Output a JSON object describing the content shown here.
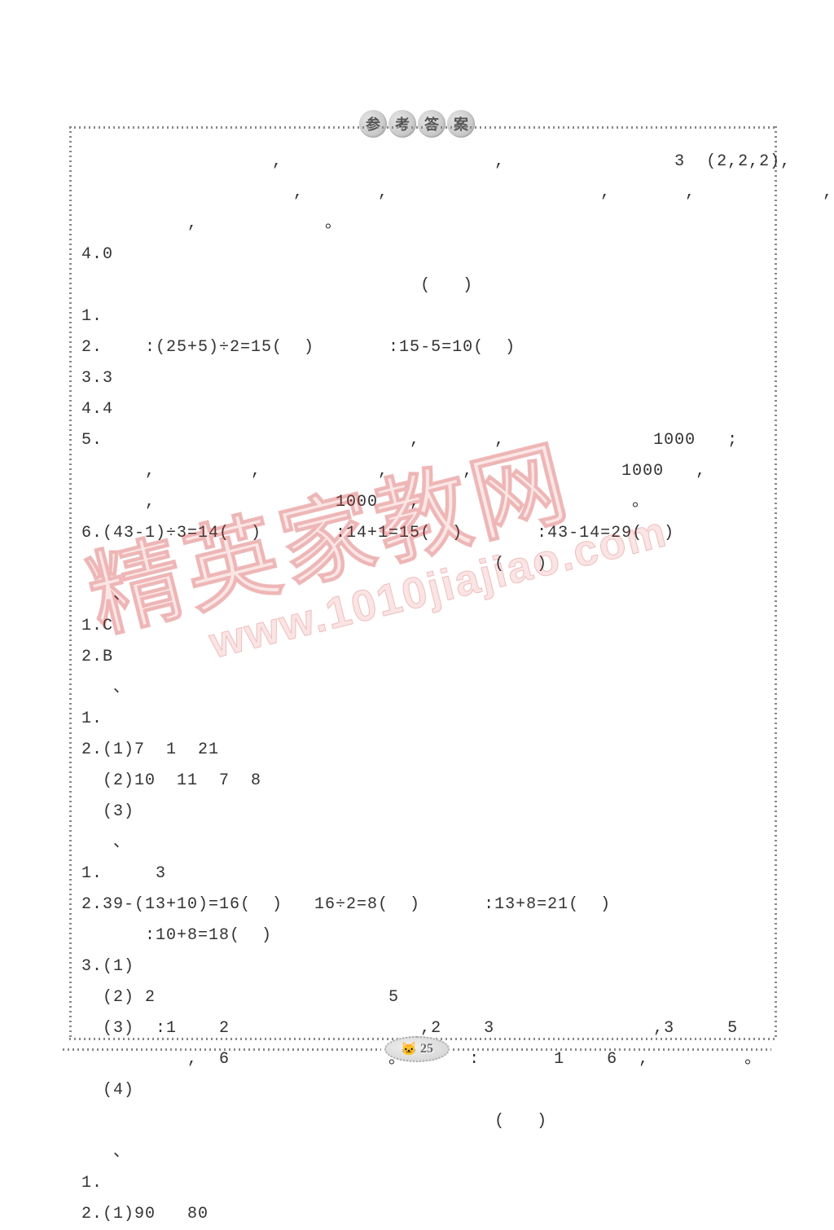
{
  "header": {
    "badge_chars": [
      "参",
      "考",
      "答",
      "案"
    ]
  },
  "lines": [
    "                  ,                    ,                3  (2,2,2),",
    "                    ,       ,                    ,       ,            ,",
    "          ,            。",
    "4.0",
    "                                (   )",
    "1.",
    "2.    :(25+5)÷2=15(  )       :15-5=10(  )",
    "3.3",
    "4.4",
    "5.                             ,       ,              1000   ;",
    "      ,         ,           ,       ,              1000   ,",
    "      ,                 1000   ,                    。",
    "6.(43-1)÷3=14(  )       :14+1=15(  )       :43-14=29(  )",
    "                                       (   )",
    "   、",
    "1.C",
    "2.B",
    "   、",
    "1.",
    "2.(1)7  1  21",
    "  (2)10  11  7  8",
    "  (3)",
    "   、",
    "1.     3",
    "2.39-(13+10)=16(  )   16÷2=8(  )      :13+8=21(  )",
    "      :10+8=18(  )",
    "3.(1)",
    "  (2) 2                      5",
    "  (3)  :1    2                  ,2    3               ,3     5",
    "          ,  6               。      :       1    6  ,         。",
    "  (4)",
    "                                       (   )",
    "   、",
    "1.",
    "2.(1)90   80"
  ],
  "footer": {
    "page_number": "25"
  },
  "watermarks": {
    "chinese": "精英家教网",
    "url": "www.1010jiajiao.com"
  }
}
